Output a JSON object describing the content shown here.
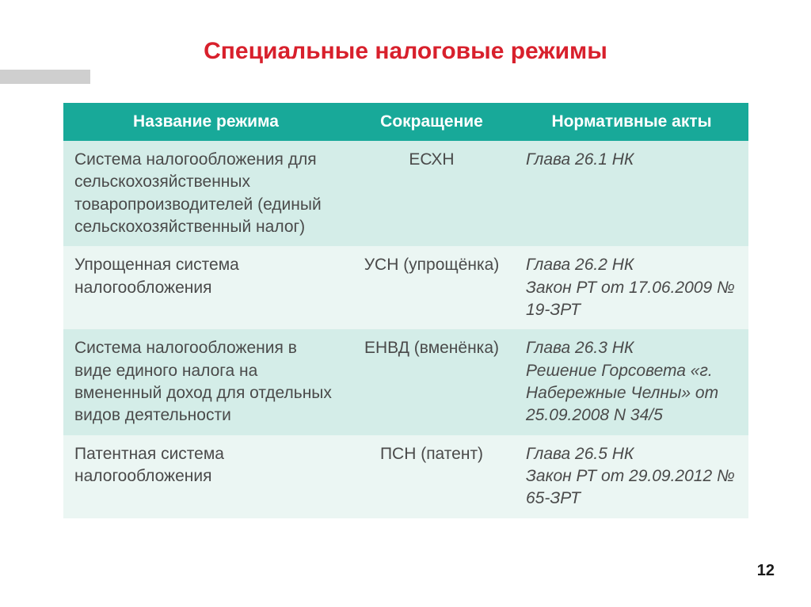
{
  "title": "Специальные налоговые режимы",
  "page_number": "12",
  "table": {
    "header_bg": "#18a999",
    "header_fg": "#ffffff",
    "row_odd_bg": "#d4ede8",
    "row_even_bg": "#ebf6f3",
    "text_color": "#4a4a4a",
    "title_color": "#d8202c",
    "columns": [
      "Название режима",
      "Сокращение",
      "Нормативные  акты"
    ],
    "rows": [
      {
        "name": "Система налогообложения для сельскохозяйственных товаропроизводителей (единый сельскохозяйственный налог)",
        "abbr": "ЕСХН",
        "acts": "Глава 26.1 НК"
      },
      {
        "name": "Упрощенная система налогообложения",
        "abbr": "УСН (упрощёнка)",
        "acts": "Глава 26.2 НК\nЗакон РТ от 17.06.2009 № 19-ЗРТ"
      },
      {
        "name": "Система налогообложения в виде единого налога на вмененный доход для отдельных видов деятельности",
        "abbr": "ЕНВД (вменёнка)",
        "acts": "Глава 26.3 НК\nРешение Горсовета «г. Набережные Челны» от 25.09.2008 N 34/5"
      },
      {
        "name": "Патентная система налогообложения",
        "abbr": "ПСН (патент)",
        "acts": "Глава 26.5 НК\nЗакон РТ от 29.09.2012 № 65-ЗРТ"
      }
    ]
  }
}
